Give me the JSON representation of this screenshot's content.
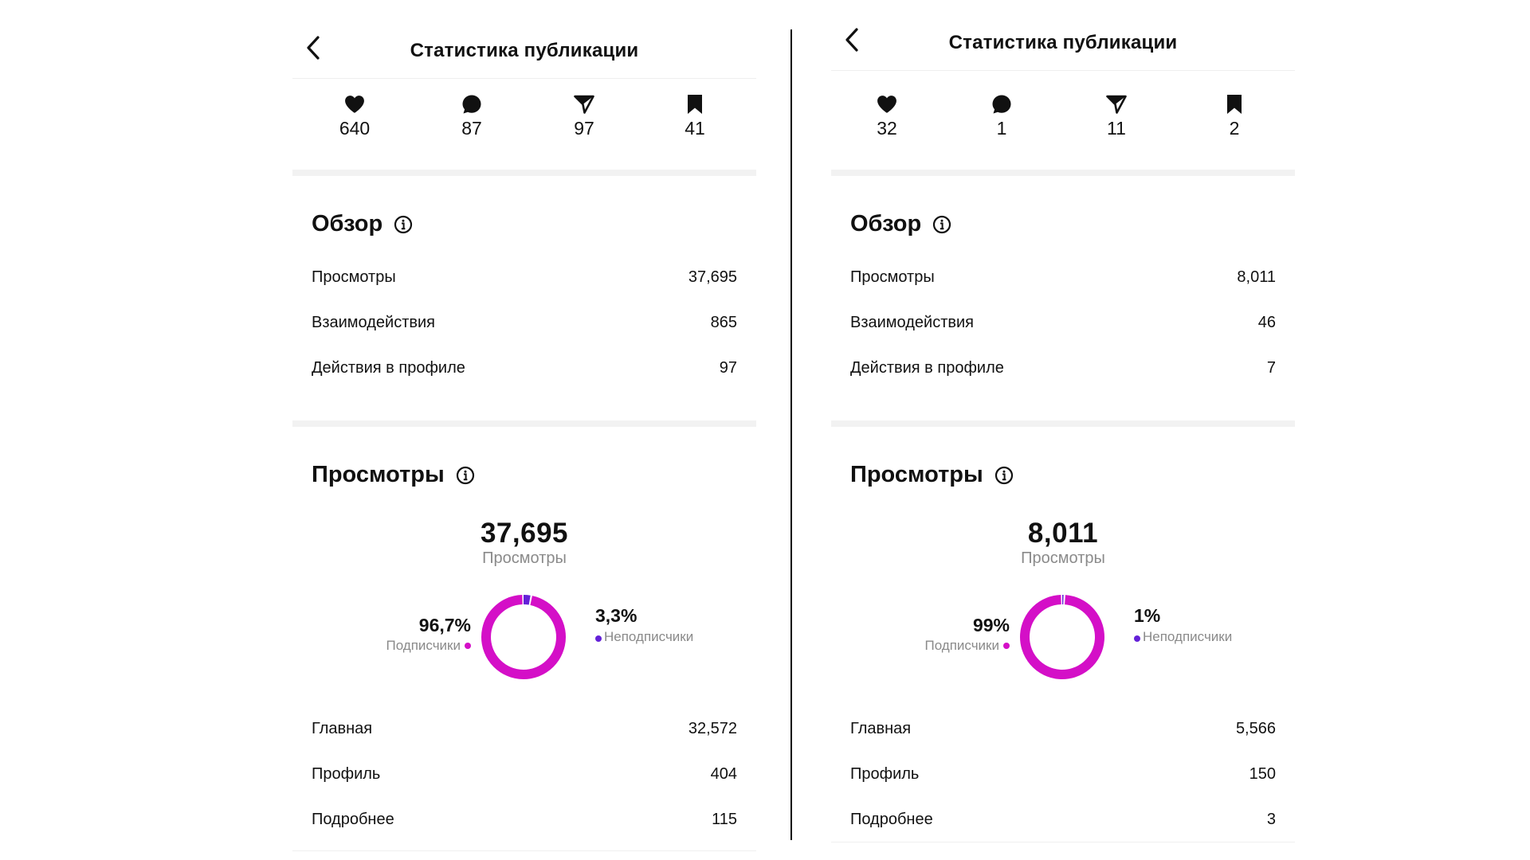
{
  "colors": {
    "followers": "#d40fc7",
    "non_followers": "#6421d8",
    "separator": "#f2f2f2"
  },
  "panels": [
    {
      "header": {
        "title": "Статистика публикации",
        "back_icon": "chevron-left-icon"
      },
      "metrics": [
        {
          "icon": "heart-icon",
          "value": "640"
        },
        {
          "icon": "comment-icon",
          "value": "87"
        },
        {
          "icon": "share-icon",
          "value": "97"
        },
        {
          "icon": "bookmark-icon",
          "value": "41"
        }
      ],
      "overview": {
        "title": "Обзор",
        "rows": [
          {
            "label": "Просмотры",
            "value": "37,695"
          },
          {
            "label": "Взаимодействия",
            "value": "865"
          },
          {
            "label": "Действия в профиле",
            "value": "97"
          }
        ]
      },
      "views": {
        "title": "Просмотры",
        "total": "37,695",
        "total_label": "Просмотры",
        "followers_pct": "96,7%",
        "followers_label": "Подписчики",
        "followers_share": 0.967,
        "non_followers_pct": "3,3%",
        "non_followers_label": "Неподписчики",
        "non_followers_share": 0.033,
        "rows": [
          {
            "label": "Главная",
            "value": "32,572"
          },
          {
            "label": "Профиль",
            "value": "404"
          },
          {
            "label": "Подробнее",
            "value": "115"
          }
        ]
      }
    },
    {
      "header": {
        "title": "Статистика публикации",
        "back_icon": "chevron-left-icon"
      },
      "metrics": [
        {
          "icon": "heart-icon",
          "value": "32"
        },
        {
          "icon": "comment-icon",
          "value": "1"
        },
        {
          "icon": "share-icon",
          "value": "11"
        },
        {
          "icon": "bookmark-icon",
          "value": "2"
        }
      ],
      "overview": {
        "title": "Обзор",
        "rows": [
          {
            "label": "Просмотры",
            "value": "8,011"
          },
          {
            "label": "Взаимодействия",
            "value": "46"
          },
          {
            "label": "Действия в профиле",
            "value": "7"
          }
        ]
      },
      "views": {
        "title": "Просмотры",
        "total": "8,011",
        "total_label": "Просмотры",
        "followers_pct": "99%",
        "followers_label": "Подписчики",
        "followers_share": 0.99,
        "non_followers_pct": "1%",
        "non_followers_label": "Неподписчики",
        "non_followers_share": 0.01,
        "rows": [
          {
            "label": "Главная",
            "value": "5,566"
          },
          {
            "label": "Профиль",
            "value": "150"
          },
          {
            "label": "Подробнее",
            "value": "3"
          }
        ]
      }
    }
  ]
}
